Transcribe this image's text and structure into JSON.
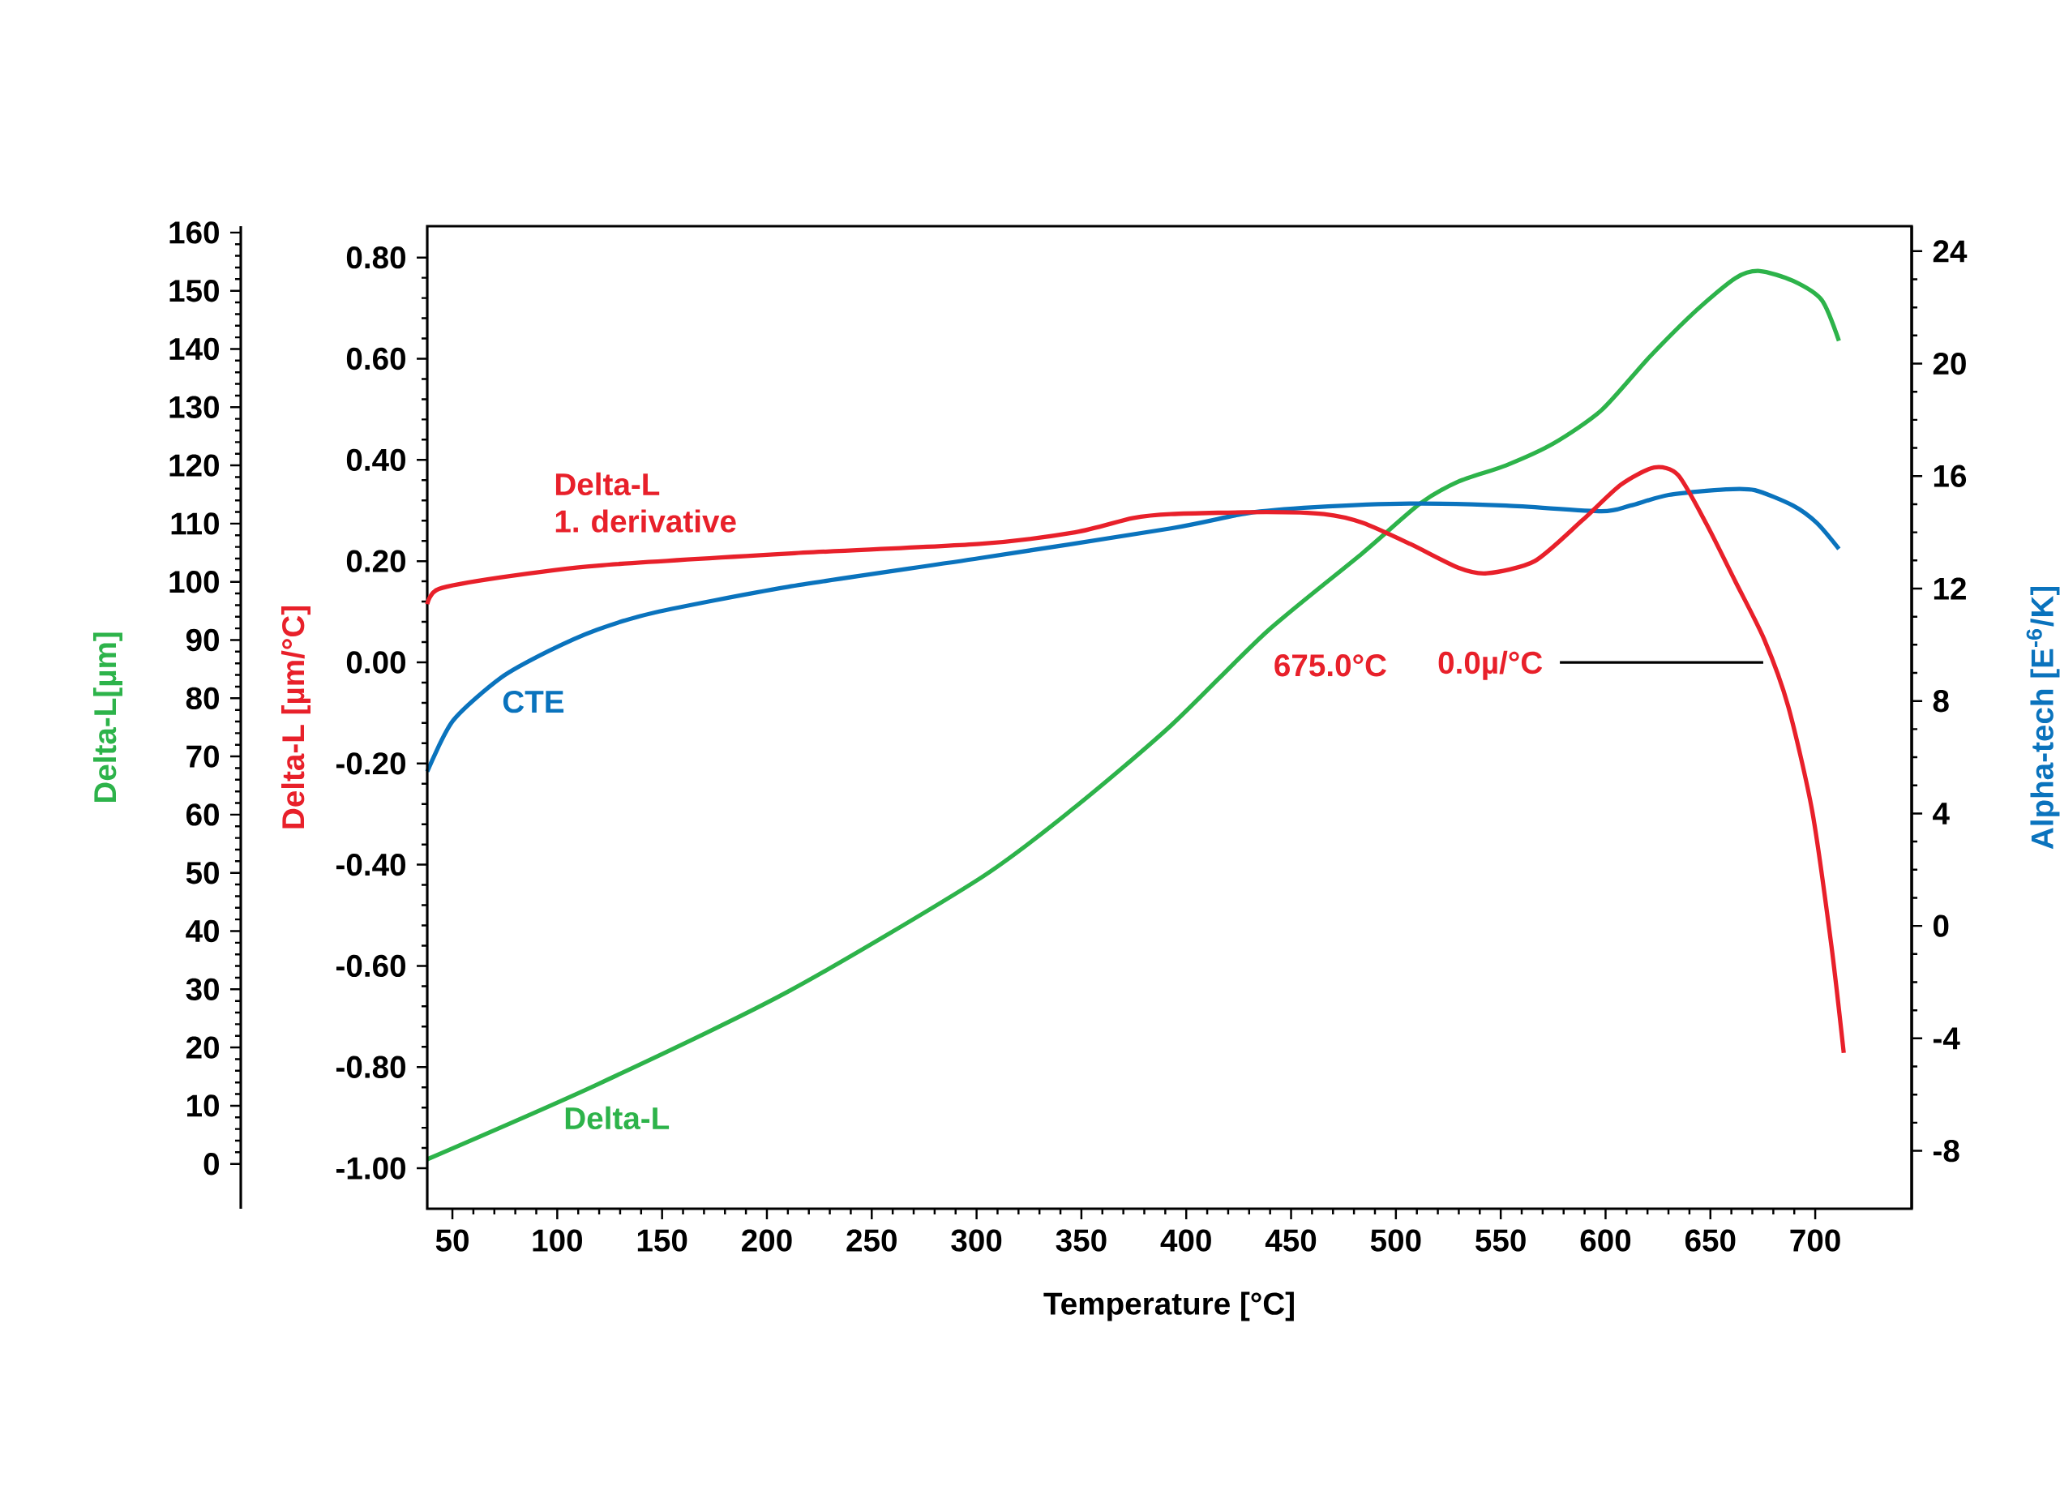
{
  "chart_data": {
    "type": "line",
    "xlabel": "Temperature [°C]",
    "ylabel": "Delta-L [µm/°C]",
    "y2label": "Alpha-tech [E$^{-6}$/K]",
    "y3label": "Delta-L[µm]",
    "xlim": [
      38,
      746
    ],
    "xticks": [
      50,
      100,
      150,
      200,
      250,
      300,
      350,
      400,
      450,
      500,
      550,
      600,
      650,
      700
    ],
    "ylim": [
      -1.08,
      0.862
    ],
    "yticks": [
      {
        "value": -1,
        "label": "-1.00"
      },
      {
        "value": -0.8,
        "label": "-0.80"
      },
      {
        "value": -0.6,
        "label": "-0.60"
      },
      {
        "value": -0.4,
        "label": "-0.40"
      },
      {
        "value": -0.2,
        "label": "-0.20"
      },
      {
        "value": 0,
        "label": "0.00"
      },
      {
        "value": 0.2,
        "label": "0.20"
      },
      {
        "value": 0.4,
        "label": "0.40"
      },
      {
        "value": 0.6,
        "label": "0.60"
      },
      {
        "value": 0.8,
        "label": "0.80"
      }
    ],
    "y2lim": [
      -10.06,
      24.89
    ],
    "y2ticks": [
      -8,
      -4,
      0,
      4,
      8,
      12,
      16,
      20,
      24
    ],
    "y3lim": [
      -7.7,
      161.1
    ],
    "y3ticks": [
      0,
      10,
      20,
      30,
      40,
      50,
      60,
      70,
      80,
      90,
      100,
      110,
      120,
      130,
      140,
      150,
      160
    ],
    "annotations": [
      "675.0°C",
      "0.0µ/°C"
    ],
    "series": [
      {
        "name": "Delta-L",
        "color": "#2db34a",
        "axis": "y3",
        "x": [
          38.0,
          118.8,
          210.1,
          301.4,
          347.0,
          392.7,
          438.3,
          484.0,
          511.4,
          529.7,
          552.5,
          575.3,
          598.1,
          620.9,
          643.8,
          662.0,
          673.5,
          689.4,
          703.1,
          711.3
        ],
        "values": [
          0.8,
          13.6,
          29.6,
          49.0,
          61.3,
          75.3,
          91.4,
          104.9,
          113.4,
          117.2,
          120.0,
          123.8,
          129.5,
          138.6,
          146.8,
          152.2,
          153.4,
          151.7,
          148.4,
          141.4
        ]
      },
      {
        "name": "Delta-L 1. derivative",
        "color": "#e8202a",
        "axis": "y",
        "x": [
          38.0,
          43.5,
          73.2,
          118.8,
          210.1,
          301.4,
          347.0,
          374.4,
          392.7,
          438.3,
          465.7,
          484.0,
          506.8,
          529.7,
          543.4,
          566.2,
          589.0,
          607.3,
          623.2,
          634.6,
          648.3,
          662.0,
          675.7,
          687.1,
          698.6,
          707.7,
          713.6
        ],
        "values": [
          0.115,
          0.145,
          0.168,
          0.191,
          0.215,
          0.234,
          0.257,
          0.285,
          0.293,
          0.297,
          0.293,
          0.276,
          0.234,
          0.187,
          0.176,
          0.2,
          0.281,
          0.351,
          0.385,
          0.37,
          0.272,
          0.159,
          0.045,
          -0.087,
          -0.295,
          -0.56,
          -0.772
        ]
      },
      {
        "name": "CTE",
        "color": "#0a73bd",
        "axis": "y2",
        "x": [
          38.0,
          50.3,
          73.2,
          96.0,
          118.8,
          146.2,
          210.1,
          301.4,
          392.7,
          429.2,
          461.2,
          506.8,
          552.5,
          598.1,
          611.8,
          630.1,
          657.5,
          671.2,
          689.4,
          700.8,
          711.3
        ],
        "values": [
          5.49,
          7.3,
          8.83,
          9.78,
          10.53,
          11.14,
          12.06,
          13.08,
          14.14,
          14.68,
          14.89,
          15.02,
          14.95,
          14.75,
          14.95,
          15.33,
          15.53,
          15.5,
          14.95,
          14.33,
          13.41
        ]
      }
    ]
  }
}
